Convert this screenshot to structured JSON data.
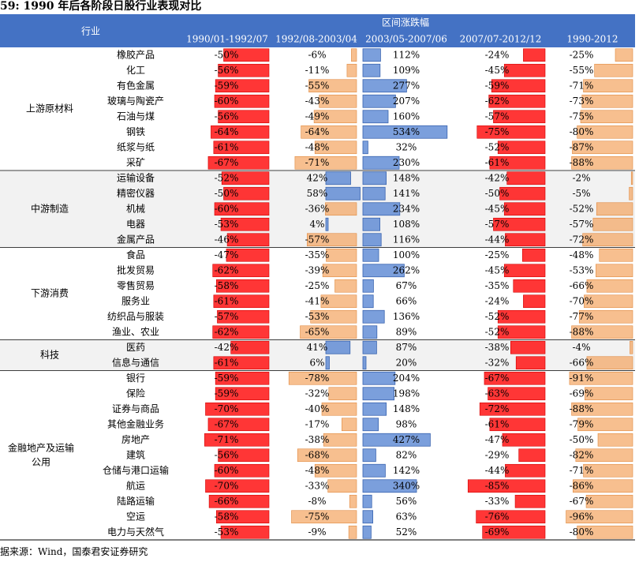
{
  "title": "59:  1990 年后各阶段日股行业表现对比",
  "source": "据来源：Wind，国泰君安证券研究",
  "chart_data": {
    "type": "table",
    "header_label": "行业",
    "header_group": "区间涨跌幅",
    "periods": [
      "1990/01-1992/07",
      "1992/08-2003/04",
      "2003/05-2007/06",
      "2007/07-2012/12",
      "1990-2012"
    ],
    "groups": [
      {
        "name": "上游原材料",
        "industries": [
          "橡胶产品",
          "化工",
          "有色金属",
          "玻璃与陶瓷产",
          "石油与煤",
          "钢铁",
          "纸浆与纸",
          "采矿"
        ],
        "shaded": false
      },
      {
        "name": "中游制造",
        "industries": [
          "运输设备",
          "精密仪器",
          "机械",
          "电器",
          "金属产品"
        ],
        "shaded": true
      },
      {
        "name": "下游消费",
        "industries": [
          "食品",
          "批发贸易",
          "零售贸易",
          "服务业",
          "纺织品与服装",
          "渔业、农业"
        ],
        "shaded": false
      },
      {
        "name": "科技",
        "industries": [
          "医药",
          "信息与通信"
        ],
        "shaded": true
      },
      {
        "name": "金融地产及运输公用",
        "name_lines": [
          "金融地产及运输",
          "公用"
        ],
        "industries": [
          "银行",
          "保险",
          "证券与商品",
          "其他金融业务",
          "房地产",
          "建筑",
          "仓储与港口运输",
          "航运",
          "陆路运输",
          "空运",
          "电力与天然气"
        ],
        "shaded": false
      }
    ],
    "values": [
      [
        -50,
        -6,
        112,
        -24,
        -25
      ],
      [
        -56,
        -11,
        109,
        -45,
        -55
      ],
      [
        -59,
        -55,
        277,
        -59,
        -71
      ],
      [
        -60,
        -43,
        207,
        -62,
        -73
      ],
      [
        -56,
        -49,
        160,
        -57,
        -75
      ],
      [
        -64,
        -64,
        534,
        -75,
        -80
      ],
      [
        -61,
        -48,
        32,
        -52,
        -87
      ],
      [
        -67,
        -71,
        230,
        -61,
        -88
      ],
      [
        -52,
        42,
        148,
        -42,
        -2
      ],
      [
        -50,
        58,
        141,
        -50,
        -5
      ],
      [
        -60,
        -36,
        234,
        -45,
        -52
      ],
      [
        -53,
        4,
        108,
        -57,
        -57
      ],
      [
        -46,
        -57,
        116,
        -44,
        -72
      ],
      [
        -47,
        -35,
        100,
        -25,
        -48
      ],
      [
        -62,
        -39,
        262,
        -45,
        -53
      ],
      [
        -58,
        -25,
        67,
        -35,
        -66
      ],
      [
        -61,
        -41,
        66,
        -24,
        -70
      ],
      [
        -57,
        -53,
        136,
        -52,
        -77
      ],
      [
        -62,
        -65,
        89,
        -52,
        -88
      ],
      [
        -42,
        41,
        87,
        -38,
        -4
      ],
      [
        -61,
        6,
        20,
        -32,
        -66
      ],
      [
        -59,
        -78,
        204,
        -67,
        -91
      ],
      [
        -59,
        -32,
        198,
        -63,
        -69
      ],
      [
        -70,
        -40,
        148,
        -72,
        -88
      ],
      [
        -67,
        -17,
        98,
        -61,
        -79
      ],
      [
        -71,
        -38,
        427,
        -47,
        -50
      ],
      [
        -56,
        -68,
        82,
        -29,
        -82
      ],
      [
        -60,
        -48,
        142,
        -44,
        -71
      ],
      [
        -70,
        -33,
        340,
        -85,
        -86
      ],
      [
        -66,
        -8,
        56,
        -33,
        -67
      ],
      [
        -58,
        -75,
        63,
        -76,
        -96
      ],
      [
        -53,
        -9,
        52,
        -69,
        -80
      ]
    ],
    "colors": {
      "header_bg": "#4472c4",
      "header_text": "#ffffff",
      "red": "#ff2020",
      "orange": "#f4a460",
      "blue": "#4f7fd0",
      "group_shade": "#f2f2f2"
    }
  }
}
